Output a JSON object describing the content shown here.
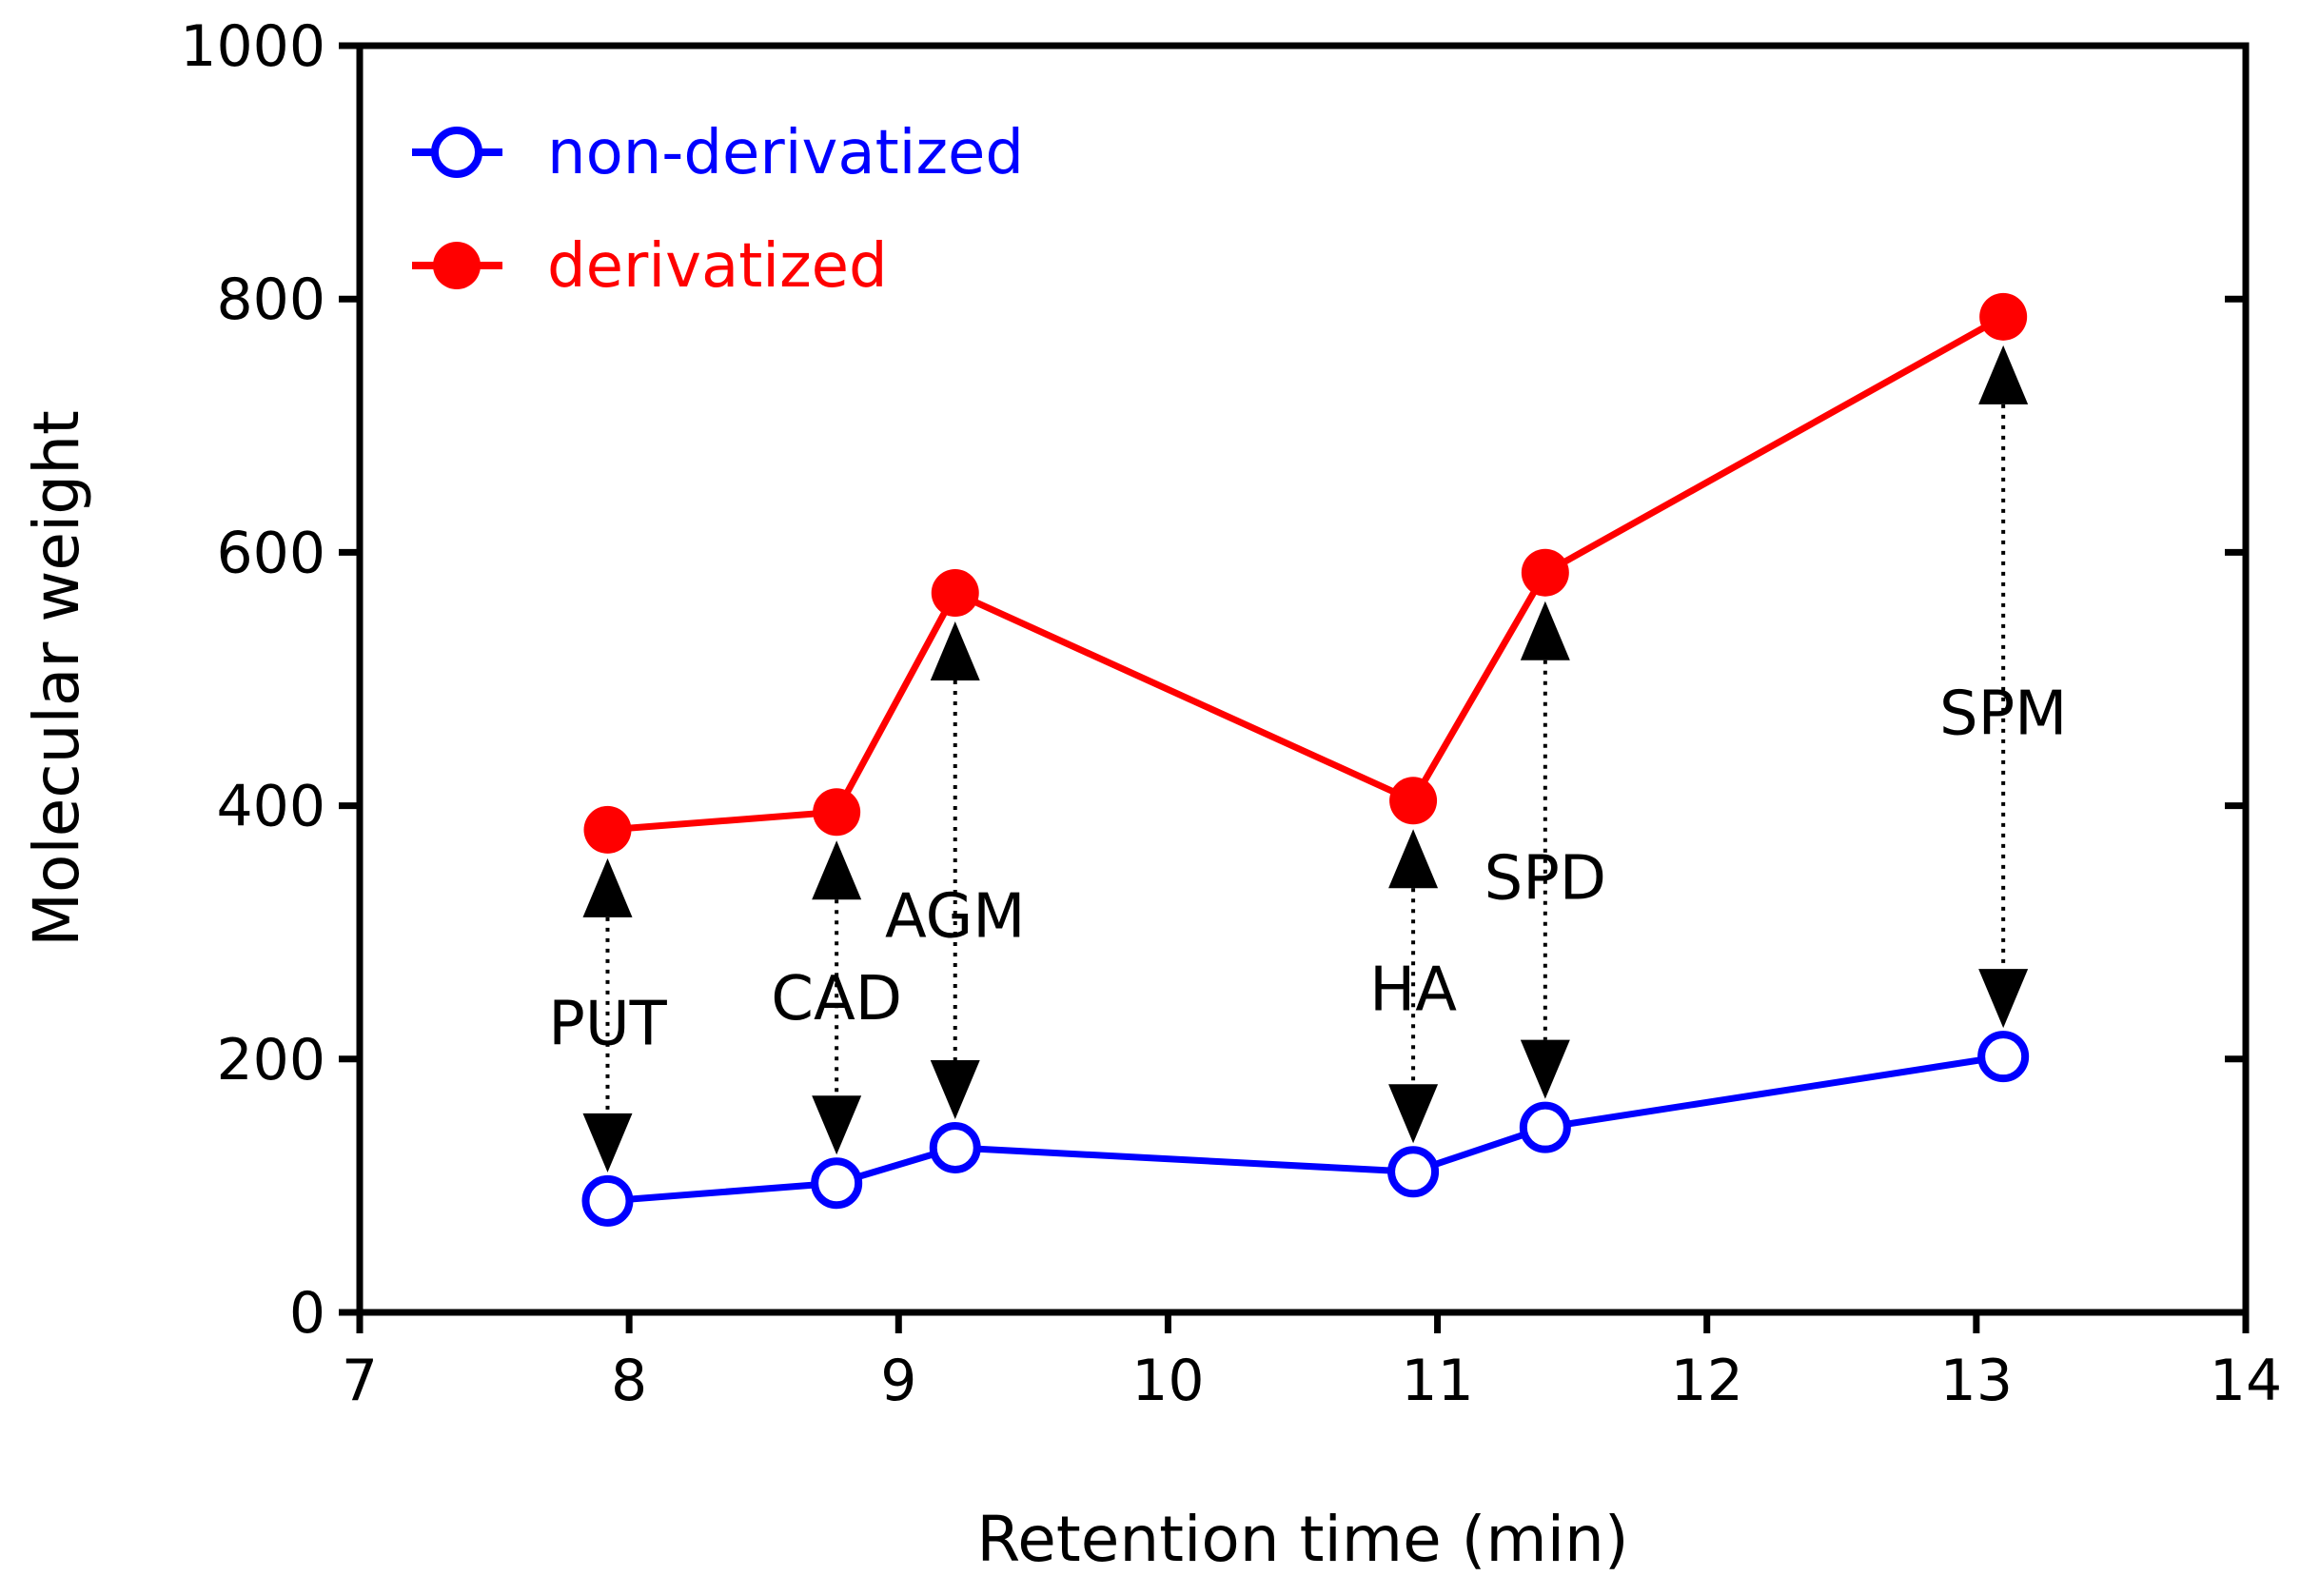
{
  "chart_data": {
    "type": "line",
    "title": "",
    "xlabel": "Retention time (min)",
    "ylabel": "Molecular weight",
    "xlim": [
      7,
      14
    ],
    "ylim": [
      0,
      1000
    ],
    "xticks": [
      7,
      8,
      9,
      10,
      11,
      12,
      13,
      14
    ],
    "yticks": [
      0,
      200,
      400,
      600,
      800,
      1000
    ],
    "grid": false,
    "legend_position": "top-left",
    "series": [
      {
        "name": "non-derivatized",
        "color": "#0000ff",
        "marker": "open-circle",
        "x": [
          7.92,
          8.77,
          9.21,
          10.91,
          11.4,
          13.1
        ],
        "y": [
          88,
          102,
          130,
          111,
          146,
          202
        ]
      },
      {
        "name": "derivatized",
        "color": "#ff0000",
        "marker": "filled-circle",
        "x": [
          7.92,
          8.77,
          9.21,
          10.91,
          11.4,
          13.1
        ],
        "y": [
          381,
          395,
          568,
          404,
          584,
          786
        ]
      }
    ],
    "annotations": [
      {
        "text": "PUT",
        "x": 7.92,
        "label_y": 228,
        "arrow_top": 381,
        "arrow_bottom": 88
      },
      {
        "text": "CAD",
        "x": 8.77,
        "label_y": 248,
        "arrow_top": 395,
        "arrow_bottom": 102
      },
      {
        "text": "AGM",
        "x": 9.21,
        "label_y": 313,
        "arrow_top": 568,
        "arrow_bottom": 130
      },
      {
        "text": "HA",
        "x": 10.91,
        "label_y": 255,
        "arrow_top": 404,
        "arrow_bottom": 111
      },
      {
        "text": "SPD",
        "x": 11.4,
        "label_y": 343,
        "arrow_top": 584,
        "arrow_bottom": 146
      },
      {
        "text": "SPM",
        "x": 13.1,
        "label_y": 473,
        "arrow_top": 786,
        "arrow_bottom": 202
      }
    ]
  }
}
